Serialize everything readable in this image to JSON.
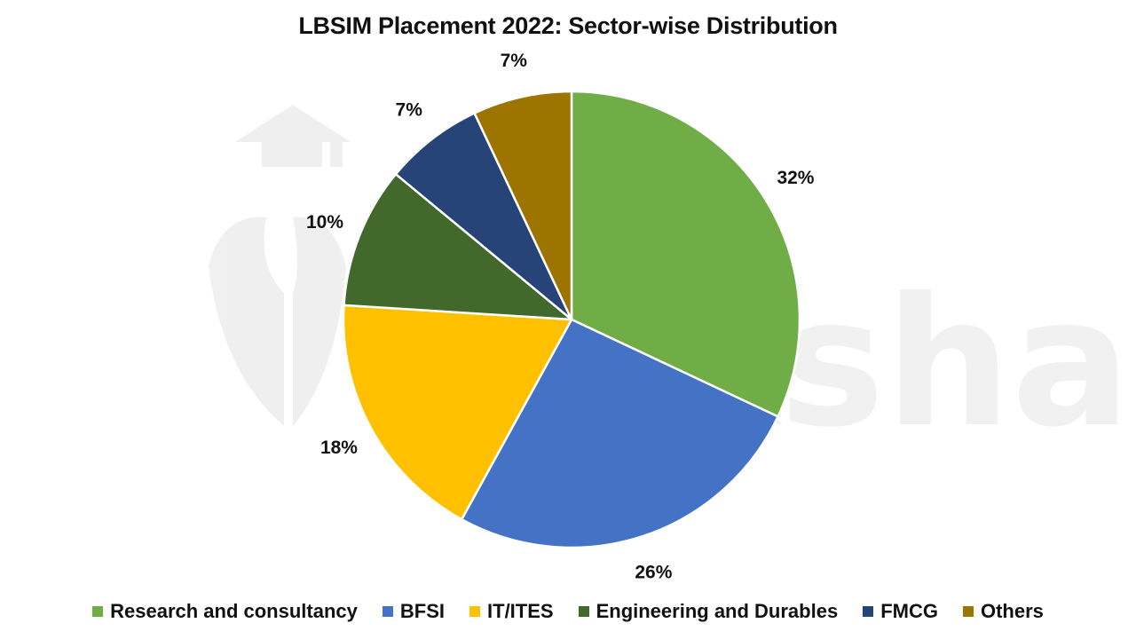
{
  "title": "LBSIM Placement 2022: Sector-wise Distribution",
  "watermark": "shiksha",
  "chart_data": {
    "type": "pie",
    "title": "LBSIM Placement 2022: Sector-wise Distribution",
    "categories": [
      "Research and consultancy",
      "BFSI",
      "IT/ITES",
      "Engineering and Durables",
      "FMCG",
      "Others"
    ],
    "values": [
      32,
      26,
      18,
      10,
      7,
      7
    ],
    "labels": [
      "32%",
      "26%",
      "18%",
      "10%",
      "7%",
      "7%"
    ],
    "colors": [
      "#70AD47",
      "#4472C4",
      "#FFC000",
      "#43682B",
      "#264478",
      "#9E7400"
    ],
    "start_angle": "12 o'clock",
    "direction": "clockwise",
    "legend_position": "bottom"
  },
  "legend": [
    {
      "label": "Research and consultancy",
      "color": "#70AD47"
    },
    {
      "label": "BFSI",
      "color": "#4472C4"
    },
    {
      "label": "IT/ITES",
      "color": "#FFC000"
    },
    {
      "label": "Engineering and Durables",
      "color": "#43682B"
    },
    {
      "label": "FMCG",
      "color": "#264478"
    },
    {
      "label": "Others",
      "color": "#9E7400"
    }
  ]
}
